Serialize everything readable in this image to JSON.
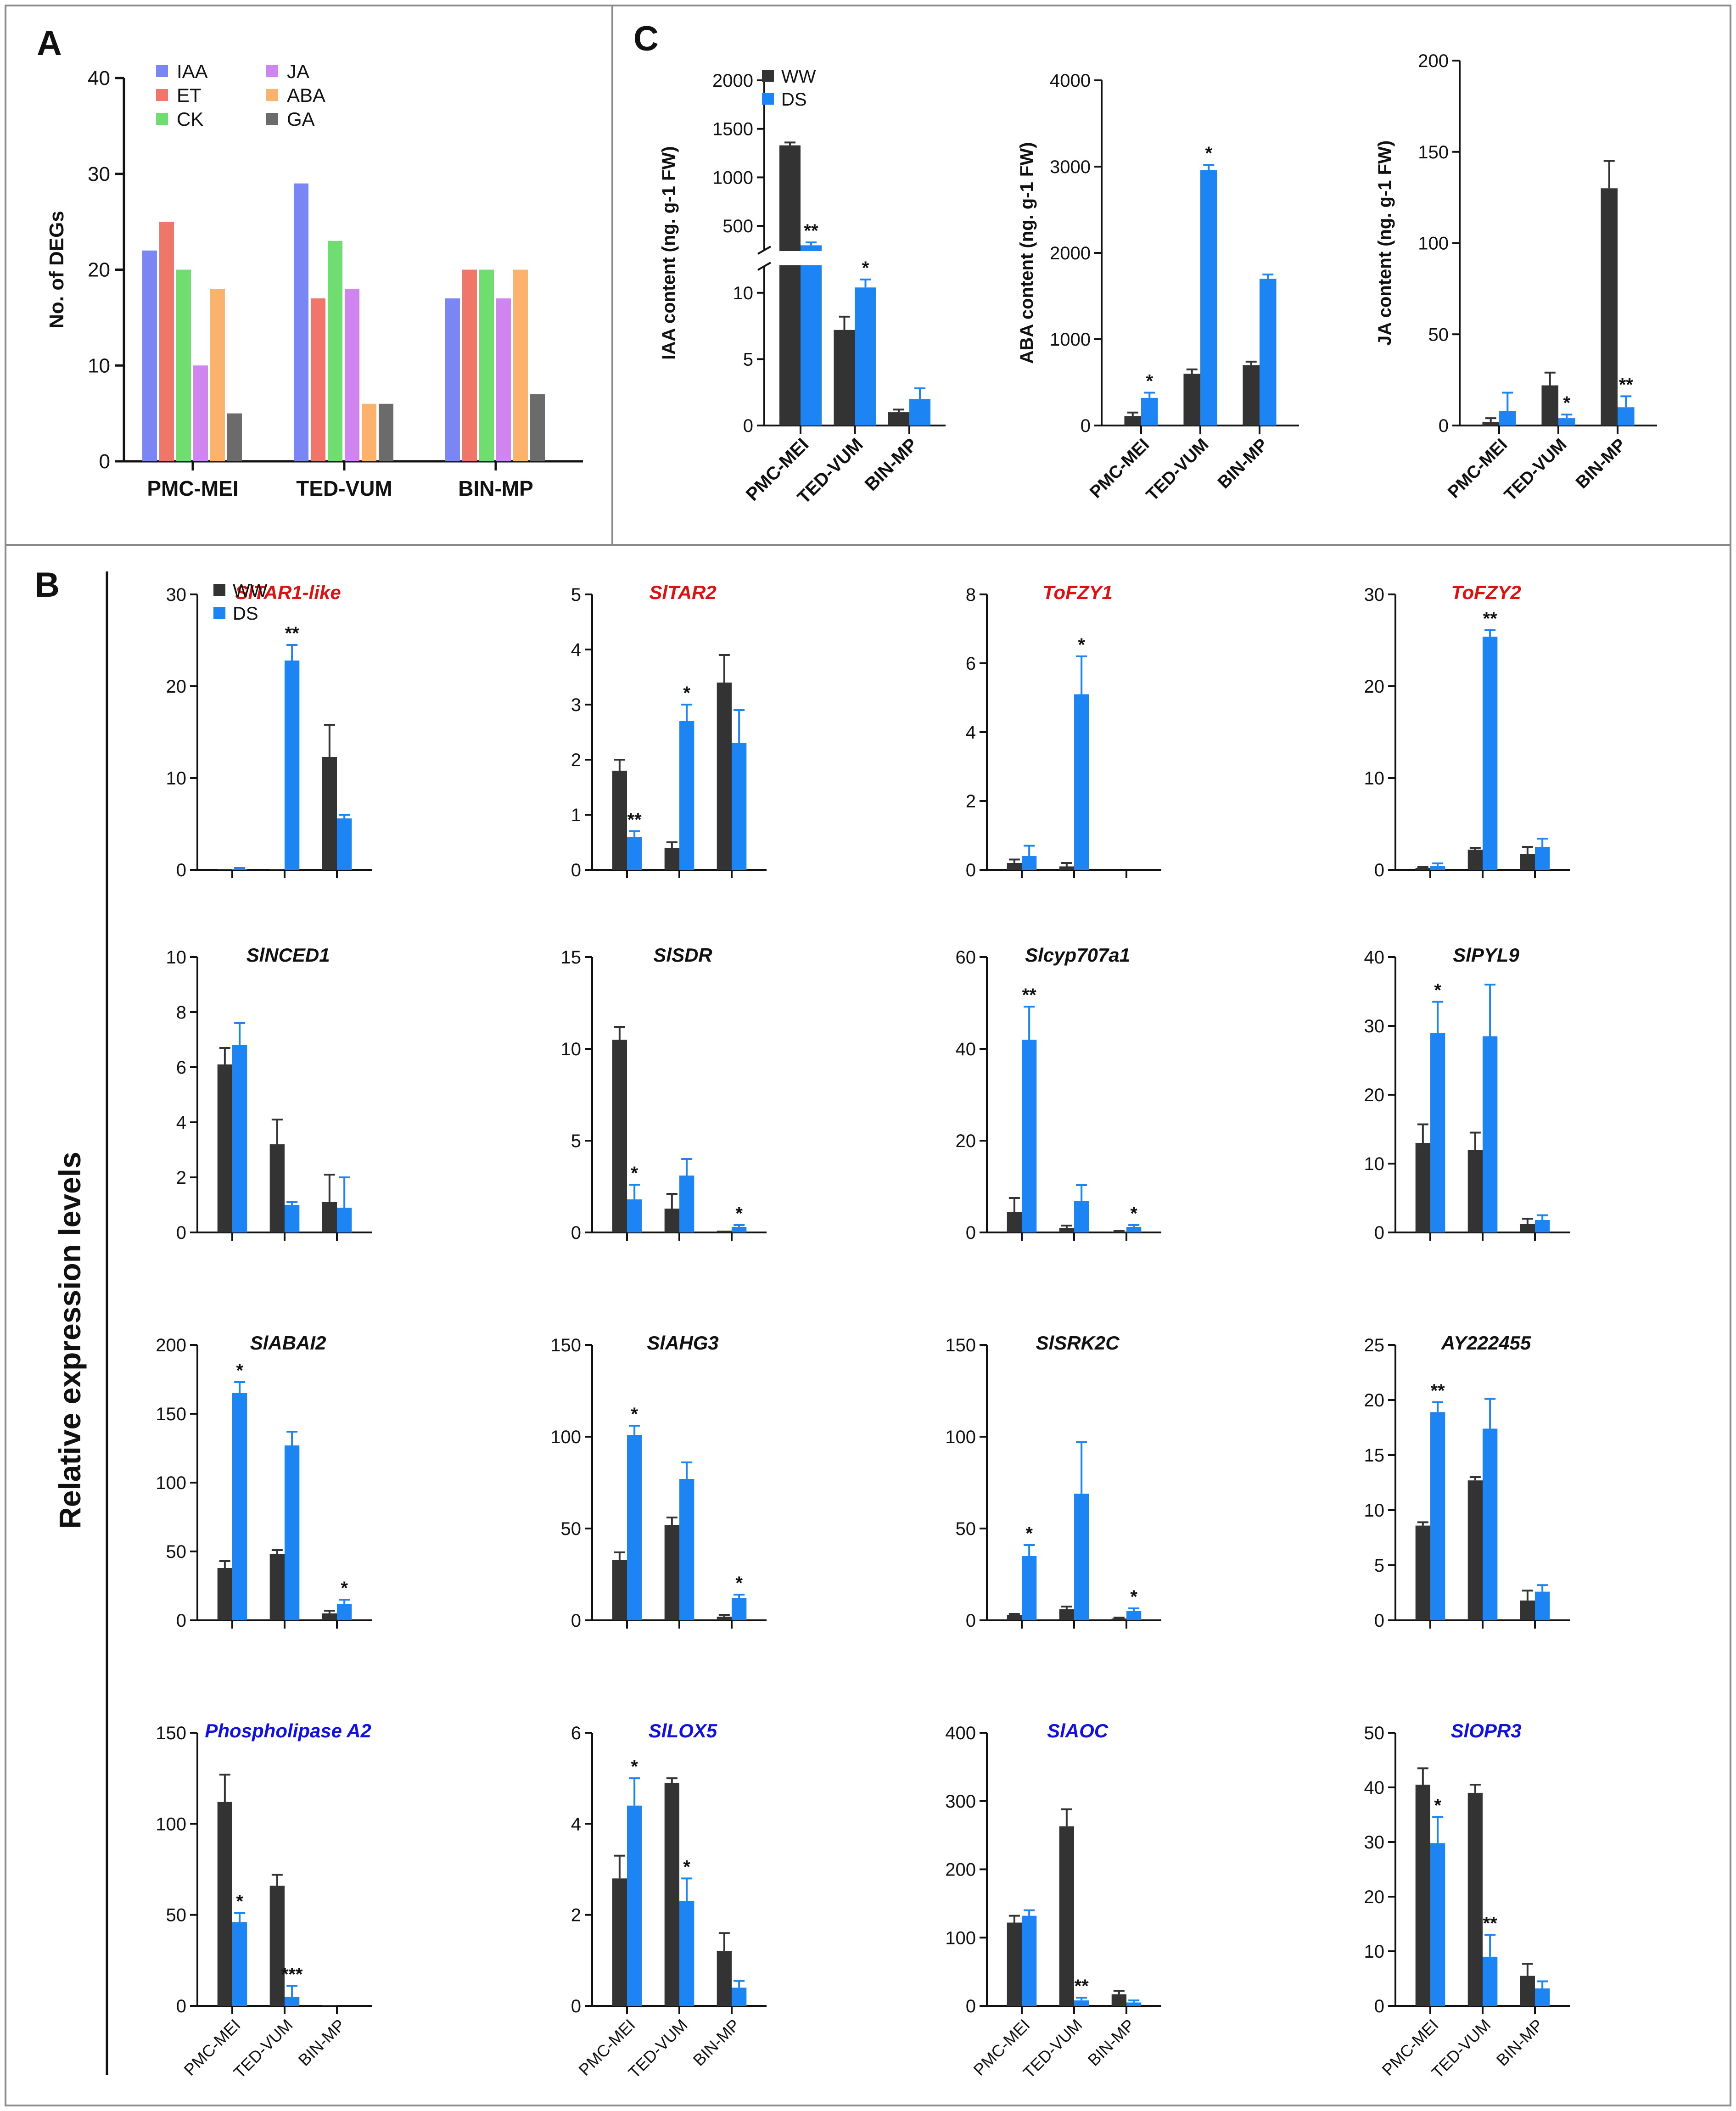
{
  "colors": {
    "IAA": "#7b86f5",
    "ET": "#f0766a",
    "CK": "#6fdd6f",
    "JA": "#cf84f0",
    "ABA": "#fbb26c",
    "GA": "#6b6b6b",
    "WW": "#333333",
    "DS": "#1d84f3",
    "title_red": "#e01010",
    "title_blue": "#1010e6",
    "title_black": "#111111"
  },
  "panels": {
    "A": {
      "letter": "A"
    },
    "B": {
      "letter": "B",
      "ylabel": "Relative expression levels"
    },
    "C": {
      "letter": "C"
    }
  },
  "legend_ww_ds": {
    "ww": "WW",
    "ds": "DS"
  },
  "chart_data": [
    {
      "id": "A",
      "type": "bar",
      "categories": [
        "PMC-MEI",
        "TED-VUM",
        "BIN-MP"
      ],
      "series": [
        {
          "name": "IAA",
          "values": [
            22,
            29,
            17
          ]
        },
        {
          "name": "ET",
          "values": [
            25,
            17,
            20
          ]
        },
        {
          "name": "CK",
          "values": [
            20,
            23,
            20
          ]
        },
        {
          "name": "JA",
          "values": [
            10,
            18,
            17
          ]
        },
        {
          "name": "ABA",
          "values": [
            18,
            6,
            20
          ]
        },
        {
          "name": "GA",
          "values": [
            5,
            6,
            7
          ]
        }
      ],
      "ylabel": "No. of DEGs",
      "ylim": [
        0,
        40
      ],
      "yticks": [
        0,
        10,
        20,
        30,
        40
      ],
      "legend": "top-left"
    },
    {
      "id": "C-IAA",
      "type": "bar",
      "broken_axis": true,
      "categories": [
        "PMC-MEI",
        "TED-VUM",
        "BIN-MP"
      ],
      "ylabel": "IAA content (ng. g-1 FW)",
      "yticks_lower": [
        0,
        5,
        10
      ],
      "yticks_upper": [
        500,
        1000,
        1500,
        2000
      ],
      "ww": [
        1330,
        7.2,
        1.0
      ],
      "ww_err": [
        30,
        1.0,
        0.2
      ],
      "ds": [
        300,
        10.4,
        2.0
      ],
      "ds_err": [
        30,
        0.6,
        0.8
      ],
      "ww_sig": [
        "",
        "",
        ""
      ],
      "ds_sig": [
        "**",
        "*",
        ""
      ]
    },
    {
      "id": "C-ABA",
      "type": "bar",
      "categories": [
        "PMC-MEI",
        "TED-VUM",
        "BIN-MP"
      ],
      "ylabel": "ABA content (ng. g-1 FW)",
      "ylim": [
        0,
        4000
      ],
      "yticks": [
        0,
        1000,
        2000,
        3000,
        4000
      ],
      "ww": [
        110,
        600,
        700
      ],
      "ww_err": [
        40,
        50,
        40
      ],
      "ds": [
        320,
        2960,
        1700
      ],
      "ds_err": [
        60,
        60,
        50
      ],
      "ww_sig": [
        "",
        "",
        ""
      ],
      "ds_sig": [
        "*",
        "*",
        ""
      ]
    },
    {
      "id": "C-JA",
      "type": "bar",
      "categories": [
        "PMC-MEI",
        "TED-VUM",
        "BIN-MP"
      ],
      "ylabel": "JA content (ng. g-1 FW)",
      "ylim": [
        0,
        200
      ],
      "yticks": [
        0,
        50,
        100,
        150,
        200
      ],
      "ww": [
        2,
        22,
        130
      ],
      "ww_err": [
        2,
        7,
        15
      ],
      "ds": [
        8,
        4,
        10
      ],
      "ds_err": [
        10,
        2,
        6
      ],
      "ww_sig": [
        "",
        "",
        ""
      ],
      "ds_sig": [
        "",
        "*",
        "**"
      ]
    },
    {
      "id": "B1",
      "type": "bar",
      "title": "SlTAR1-like",
      "title_color": "red",
      "categories": [
        "PMC-MEI",
        "TED-VUM",
        "BIN-MP"
      ],
      "ylim": [
        0,
        30
      ],
      "yticks": [
        0,
        10,
        20,
        30
      ],
      "ww": [
        0.1,
        0.1,
        12.3
      ],
      "ww_err": [
        0,
        0,
        3.5
      ],
      "ds": [
        0.1,
        22.8,
        5.6
      ],
      "ds_err": [
        0.1,
        1.7,
        0.4
      ],
      "ww_sig": [
        "",
        "",
        ""
      ],
      "ds_sig": [
        "",
        "**",
        ""
      ]
    },
    {
      "id": "B2",
      "type": "bar",
      "title": "SlTAR2",
      "title_color": "red",
      "categories": [
        "PMC-MEI",
        "TED-VUM",
        "BIN-MP"
      ],
      "ylim": [
        0,
        5
      ],
      "yticks": [
        0,
        1,
        2,
        3,
        4,
        5
      ],
      "ww": [
        1.8,
        0.4,
        3.4
      ],
      "ww_err": [
        0.2,
        0.1,
        0.5
      ],
      "ds": [
        0.6,
        2.7,
        2.3
      ],
      "ds_err": [
        0.1,
        0.3,
        0.6
      ],
      "ww_sig": [
        "",
        "",
        ""
      ],
      "ds_sig": [
        "**",
        "*",
        ""
      ]
    },
    {
      "id": "B3",
      "type": "bar",
      "title": "ToFZY1",
      "title_color": "red",
      "categories": [
        "PMC-MEI",
        "TED-VUM",
        "BIN-MP"
      ],
      "ylim": [
        0,
        8
      ],
      "yticks": [
        0,
        2,
        4,
        6,
        8
      ],
      "ww": [
        0.2,
        0.1,
        0
      ],
      "ww_err": [
        0.1,
        0.1,
        0
      ],
      "ds": [
        0.4,
        5.1,
        0
      ],
      "ds_err": [
        0.3,
        1.1,
        0
      ],
      "ww_sig": [
        "",
        "",
        ""
      ],
      "ds_sig": [
        "",
        "*",
        ""
      ]
    },
    {
      "id": "B4",
      "type": "bar",
      "title": "ToFZY2",
      "title_color": "red",
      "categories": [
        "PMC-MEI",
        "TED-VUM",
        "BIN-MP"
      ],
      "ylim": [
        0,
        30
      ],
      "yticks": [
        0,
        10,
        20,
        30
      ],
      "ww": [
        0.2,
        2.2,
        1.7
      ],
      "ww_err": [
        0.1,
        0.2,
        0.8
      ],
      "ds": [
        0.4,
        25.4,
        2.5
      ],
      "ds_err": [
        0.3,
        0.7,
        0.9
      ],
      "ww_sig": [
        "",
        "",
        ""
      ],
      "ds_sig": [
        "",
        "**",
        ""
      ]
    },
    {
      "id": "B5",
      "type": "bar",
      "title": "SlNCED1",
      "title_color": "black",
      "categories": [
        "PMC-MEI",
        "TED-VUM",
        "BIN-MP"
      ],
      "ylim": [
        0,
        10
      ],
      "yticks": [
        0,
        2,
        4,
        6,
        8,
        10
      ],
      "ww": [
        6.1,
        3.2,
        1.1
      ],
      "ww_err": [
        0.6,
        0.9,
        1.0
      ],
      "ds": [
        6.8,
        1.0,
        0.9
      ],
      "ds_err": [
        0.8,
        0.1,
        1.1
      ],
      "ww_sig": [
        "",
        "",
        ""
      ],
      "ds_sig": [
        "",
        "",
        ""
      ]
    },
    {
      "id": "B6",
      "type": "bar",
      "title": "SlSDR",
      "title_color": "black",
      "categories": [
        "PMC-MEI",
        "TED-VUM",
        "BIN-MP"
      ],
      "ylim": [
        0,
        15
      ],
      "yticks": [
        0,
        5,
        10,
        15
      ],
      "ww": [
        10.5,
        1.3,
        0.1
      ],
      "ww_err": [
        0.7,
        0.8,
        0
      ],
      "ds": [
        1.8,
        3.1,
        0.3
      ],
      "ds_err": [
        0.8,
        0.9,
        0.1
      ],
      "ww_sig": [
        "",
        "",
        ""
      ],
      "ds_sig": [
        "*",
        "",
        "*"
      ]
    },
    {
      "id": "B7",
      "type": "bar",
      "title": "Slcyp707a1",
      "title_color": "black",
      "categories": [
        "PMC-MEI",
        "TED-VUM",
        "BIN-MP"
      ],
      "ylim": [
        0,
        60
      ],
      "yticks": [
        0,
        20,
        40,
        60
      ],
      "ww": [
        4.5,
        1.0,
        0.2
      ],
      "ww_err": [
        3.0,
        0.5,
        0.1
      ],
      "ds": [
        42,
        6.8,
        1.2
      ],
      "ds_err": [
        7.2,
        3.5,
        0.4
      ],
      "ww_sig": [
        "",
        "",
        ""
      ],
      "ds_sig": [
        "**",
        "",
        "*"
      ]
    },
    {
      "id": "B8",
      "type": "bar",
      "title": "SlPYL9",
      "title_color": "black",
      "categories": [
        "PMC-MEI",
        "TED-VUM",
        "BIN-MP"
      ],
      "ylim": [
        0,
        40
      ],
      "yticks": [
        0,
        10,
        20,
        30,
        40
      ],
      "ww": [
        13,
        12,
        1.2
      ],
      "ww_err": [
        2.7,
        2.5,
        0.8
      ],
      "ds": [
        29,
        28.5,
        1.8
      ],
      "ds_err": [
        4.5,
        7.5,
        0.7
      ],
      "ww_sig": [
        "",
        "",
        ""
      ],
      "ds_sig": [
        "*",
        "",
        ""
      ]
    },
    {
      "id": "B9",
      "type": "bar",
      "title": "SlABAI2",
      "title_color": "black",
      "categories": [
        "PMC-MEI",
        "TED-VUM",
        "BIN-MP"
      ],
      "ylim": [
        0,
        200
      ],
      "yticks": [
        0,
        50,
        100,
        150,
        200
      ],
      "ww": [
        38,
        48,
        5
      ],
      "ww_err": [
        5,
        3,
        2
      ],
      "ds": [
        165,
        127,
        12
      ],
      "ds_err": [
        8,
        10,
        3
      ],
      "ww_sig": [
        "",
        "",
        ""
      ],
      "ds_sig": [
        "*",
        "",
        "*"
      ]
    },
    {
      "id": "B10",
      "type": "bar",
      "title": "SlAHG3",
      "title_color": "black",
      "categories": [
        "PMC-MEI",
        "TED-VUM",
        "BIN-MP"
      ],
      "ylim": [
        0,
        150
      ],
      "yticks": [
        0,
        50,
        100,
        150
      ],
      "ww": [
        33,
        52,
        2
      ],
      "ww_err": [
        4,
        4,
        1
      ],
      "ds": [
        101,
        77,
        12
      ],
      "ds_err": [
        5,
        9,
        2
      ],
      "ww_sig": [
        "",
        "",
        ""
      ],
      "ds_sig": [
        "*",
        "",
        "*"
      ]
    },
    {
      "id": "B11",
      "type": "bar",
      "title": "SlSRK2C",
      "title_color": "black",
      "categories": [
        "PMC-MEI",
        "TED-VUM",
        "BIN-MP"
      ],
      "ylim": [
        0,
        150
      ],
      "yticks": [
        0,
        50,
        100,
        150
      ],
      "ww": [
        3,
        6,
        1
      ],
      "ww_err": [
        0.5,
        1.5,
        0.5
      ],
      "ds": [
        35,
        69,
        5
      ],
      "ds_err": [
        6,
        28,
        1.5
      ],
      "ww_sig": [
        "",
        "",
        ""
      ],
      "ds_sig": [
        "*",
        "",
        "*"
      ]
    },
    {
      "id": "B12",
      "type": "bar",
      "title": "AY222455",
      "title_color": "black",
      "categories": [
        "PMC-MEI",
        "TED-VUM",
        "BIN-MP"
      ],
      "ylim": [
        0,
        25
      ],
      "yticks": [
        0,
        5,
        10,
        15,
        20,
        25
      ],
      "ww": [
        8.6,
        12.7,
        1.8
      ],
      "ww_err": [
        0.3,
        0.3,
        0.9
      ],
      "ds": [
        18.9,
        17.4,
        2.6
      ],
      "ds_err": [
        0.9,
        2.7,
        0.6
      ],
      "ww_sig": [
        "",
        "",
        ""
      ],
      "ds_sig": [
        "**",
        "",
        ""
      ]
    },
    {
      "id": "B13",
      "type": "bar",
      "title": "Phospholipase A2",
      "title_color": "blue",
      "categories": [
        "PMC-MEI",
        "TED-VUM",
        "BIN-MP"
      ],
      "ylim": [
        0,
        150
      ],
      "yticks": [
        0,
        50,
        100,
        150
      ],
      "ww": [
        112,
        66,
        0.5
      ],
      "ww_err": [
        15,
        6,
        0
      ],
      "ds": [
        46,
        5,
        0
      ],
      "ds_err": [
        5,
        6,
        0
      ],
      "ww_sig": [
        "",
        "",
        ""
      ],
      "ds_sig": [
        "*",
        "***",
        ""
      ]
    },
    {
      "id": "B14",
      "type": "bar",
      "title": "SlLOX5",
      "title_color": "blue",
      "categories": [
        "PMC-MEI",
        "TED-VUM",
        "BIN-MP"
      ],
      "ylim": [
        0,
        6
      ],
      "yticks": [
        0,
        2,
        4,
        6
      ],
      "ww": [
        2.8,
        4.9,
        1.2
      ],
      "ww_err": [
        0.5,
        0.1,
        0.4
      ],
      "ds": [
        4.4,
        2.3,
        0.4
      ],
      "ds_err": [
        0.6,
        0.5,
        0.15
      ],
      "ww_sig": [
        "",
        "",
        ""
      ],
      "ds_sig": [
        "*",
        "*",
        ""
      ]
    },
    {
      "id": "B15",
      "type": "bar",
      "title": "SlAOC",
      "title_color": "blue",
      "categories": [
        "PMC-MEI",
        "TED-VUM",
        "BIN-MP"
      ],
      "ylim": [
        0,
        400
      ],
      "yticks": [
        0,
        100,
        200,
        300,
        400
      ],
      "ww": [
        122,
        263,
        17
      ],
      "ww_err": [
        10,
        25,
        5
      ],
      "ds": [
        132,
        8,
        5
      ],
      "ds_err": [
        8,
        4,
        3
      ],
      "ww_sig": [
        "",
        "",
        ""
      ],
      "ds_sig": [
        "",
        "**",
        ""
      ]
    },
    {
      "id": "B16",
      "type": "bar",
      "title": "SlOPR3",
      "title_color": "blue",
      "categories": [
        "PMC-MEI",
        "TED-VUM",
        "BIN-MP"
      ],
      "ylim": [
        0,
        50
      ],
      "yticks": [
        0,
        10,
        20,
        30,
        40,
        50
      ],
      "ww": [
        40.5,
        39,
        5.5
      ],
      "ww_err": [
        3,
        1.5,
        2.2
      ],
      "ds": [
        29.8,
        9,
        3.2
      ],
      "ds_err": [
        4.8,
        4,
        1.3
      ],
      "ww_sig": [
        "",
        "",
        ""
      ],
      "ds_sig": [
        "*",
        "**",
        ""
      ]
    }
  ]
}
